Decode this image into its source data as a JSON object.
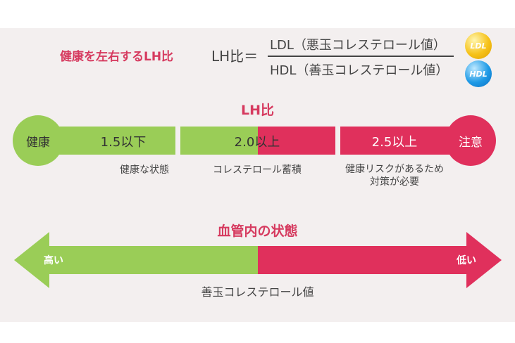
{
  "formula": {
    "title": "健康を左右するLH比",
    "lh_label": "LH比＝",
    "numerator": "LDL（悪玉コレステロール値）",
    "denominator": "HDL（善玉コレステロール値）",
    "ldl_badge": "LDL",
    "hdl_badge": "HDL"
  },
  "scale": {
    "title": "LH比",
    "left_end": "健康",
    "right_end": "注意",
    "segments": [
      {
        "value": "1.5以下",
        "description": "健康な状態"
      },
      {
        "value": "2.0以上",
        "description": "コレステロール蓄積"
      },
      {
        "value": "2.5以上",
        "description_line1": "健康リスクがあるため",
        "description_line2": "対策が必要"
      }
    ]
  },
  "vessel": {
    "title": "血管内の状態",
    "left_label": "高い",
    "right_label": "低い",
    "caption": "善玉コレステロール値"
  },
  "colors": {
    "green": "#9acd57",
    "pink": "#e0305c",
    "accent_text": "#d63a5f",
    "background": "#f3efef"
  }
}
